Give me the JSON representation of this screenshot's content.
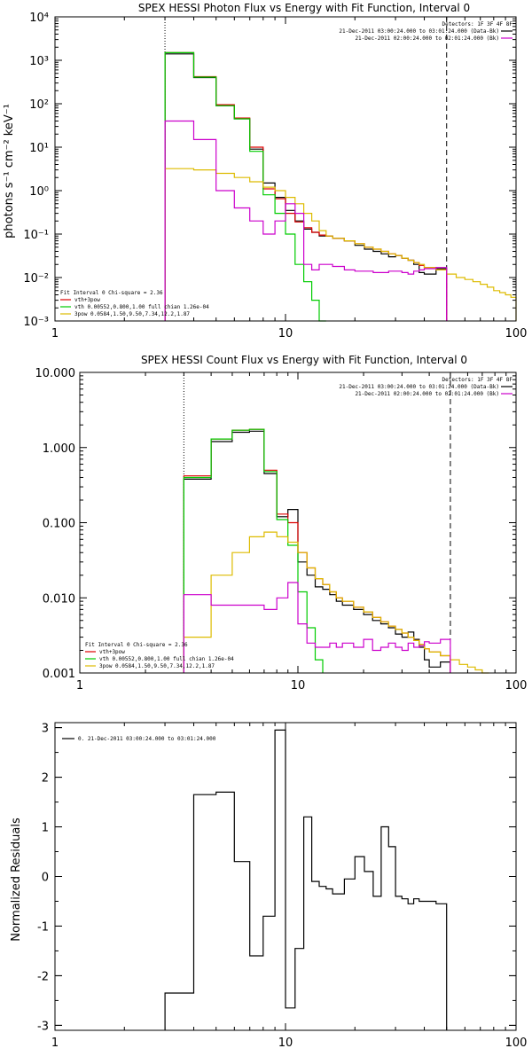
{
  "chart_data": [
    {
      "type": "line",
      "style": "histogram",
      "title": "SPEX HESSI Photon Flux vs Energy with Fit Function, Interval 0",
      "ylabel": "photons s⁻¹ cm⁻² keV⁻¹",
      "xlabel": "",
      "xscale": "log",
      "yscale": "log",
      "xlim": [
        1,
        100
      ],
      "ylim": [
        0.001,
        10000
      ],
      "x_ticks": [
        1,
        10,
        100
      ],
      "x_tick_labels": [
        "1",
        "10",
        "100"
      ],
      "y_ticks": [
        0.001,
        0.01,
        0.1,
        1,
        10,
        100,
        1000,
        10000
      ],
      "y_tick_labels": [
        "10⁻³",
        "10⁻²",
        "10⁻¹",
        "10⁰",
        "10¹",
        "10²",
        "10³",
        "10⁴"
      ],
      "vlines": [
        {
          "x": 3,
          "style": "dotted"
        },
        {
          "x": 50,
          "style": "dashed"
        }
      ],
      "info": {
        "detectors": "Detectors: 1F 3F 4F 8F",
        "lines": [
          {
            "text": "21-Dec-2011 03:00:24.000 to 03:01:24.000 (Data-Bk)",
            "color": "#000000"
          },
          {
            "text": "21-Dec-2011 02:00:24.000 to 02:01:24.000 (Bk)",
            "color": "#cc00cc"
          }
        ]
      },
      "legend": {
        "position": "bottom-left",
        "header": "Fit Interval 0   Chi-square = 2.36",
        "entries": [
          {
            "text": "vth+3pow",
            "color": "#dd0000"
          },
          {
            "text": "vth 0.00552,0.800,1.00   full chian 1.26e-04",
            "color": "#00cc00"
          },
          {
            "text": "3pow 0.0584,1.50,9.50,7.34,12.2,1.87",
            "color": "#ddbb00"
          }
        ]
      },
      "bin_edges": [
        3,
        3.5,
        4,
        4.5,
        5,
        5.5,
        6,
        6.5,
        7,
        7.5,
        8,
        9,
        10,
        11,
        12,
        13,
        14,
        15,
        16,
        18,
        20,
        22,
        24,
        26,
        28,
        30,
        32,
        34,
        36,
        38,
        40,
        45,
        50,
        55,
        60,
        65,
        70,
        75,
        80,
        85,
        90,
        95,
        100
      ],
      "series": [
        {
          "id": "data-bk",
          "color": "#000000",
          "values": [
            1400,
            1400,
            400,
            400,
            90,
            90,
            45,
            45,
            9,
            9,
            1.5,
            0.7,
            0.35,
            0.2,
            0.13,
            0.11,
            0.09,
            0.09,
            0.08,
            0.07,
            0.055,
            0.045,
            0.04,
            0.035,
            0.03,
            0.032,
            0.028,
            0.025,
            0.02,
            0.013,
            0.012,
            0.016
          ]
        },
        {
          "id": "vth-3pow",
          "color": "#dd0000",
          "values": [
            1500,
            1500,
            420,
            420,
            95,
            95,
            47,
            47,
            10,
            10,
            1.1,
            0.65,
            0.3,
            0.19,
            0.14,
            0.11,
            0.095,
            0.09,
            0.08,
            0.07,
            0.06,
            0.05,
            0.045,
            0.04,
            0.035,
            0.032,
            0.028,
            0.025,
            0.022,
            0.019,
            0.017,
            0.015
          ]
        },
        {
          "id": "vth",
          "color": "#00cc00",
          "values": [
            1500,
            1500,
            410,
            410,
            90,
            90,
            45,
            45,
            8,
            8,
            0.8,
            0.3,
            0.1,
            0.02,
            0.008,
            0.003,
            0.001
          ]
        },
        {
          "id": "3pow",
          "color": "#ddbb00",
          "values": [
            3.2,
            3.2,
            3.0,
            3.0,
            2.5,
            2.5,
            2.0,
            2.0,
            1.6,
            1.6,
            1.2,
            1.0,
            0.7,
            0.5,
            0.3,
            0.2,
            0.12,
            0.09,
            0.08,
            0.07,
            0.06,
            0.05,
            0.045,
            0.04,
            0.035,
            0.032,
            0.028,
            0.025,
            0.022,
            0.02,
            0.017,
            0.015,
            0.012,
            0.01,
            0.009,
            0.008,
            0.007,
            0.006,
            0.005,
            0.0045,
            0.004,
            0.0035
          ]
        },
        {
          "id": "bk",
          "color": "#cc00cc",
          "values": [
            40,
            40,
            15,
            15,
            1.0,
            1.0,
            0.4,
            0.4,
            0.2,
            0.2,
            0.1,
            0.2,
            0.5,
            0.3,
            0.02,
            0.015,
            0.02,
            0.02,
            0.018,
            0.015,
            0.014,
            0.014,
            0.013,
            0.013,
            0.014,
            0.014,
            0.013,
            0.012,
            0.014,
            0.015,
            0.016,
            0.017
          ]
        }
      ]
    },
    {
      "type": "line",
      "style": "histogram",
      "title": "SPEX HESSI Count Flux vs Energy with Fit Function, Interval 0",
      "ylabel": "",
      "xlabel": "",
      "xscale": "log",
      "yscale": "log",
      "xlim": [
        1,
        100
      ],
      "ylim": [
        0.001,
        10
      ],
      "x_ticks": [
        1,
        10,
        100
      ],
      "x_tick_labels": [
        "1",
        "10",
        "100"
      ],
      "y_ticks": [
        0.001,
        0.01,
        0.1,
        1,
        10
      ],
      "y_tick_labels": [
        "0.001",
        "0.010",
        "0.100",
        "1.000",
        "10.000"
      ],
      "vlines": [
        {
          "x": 3,
          "style": "dotted"
        },
        {
          "x": 50,
          "style": "dashed"
        }
      ],
      "info": {
        "detectors": "Detectors: 1F 3F 4F 8F",
        "lines": [
          {
            "text": "21-Dec-2011 03:00:24.000 to 03:01:24.000 (Data-Bk)",
            "color": "#000000"
          },
          {
            "text": "21-Dec-2011 02:00:24.000 to 02:01:24.000 (Bk)",
            "color": "#cc00cc"
          }
        ]
      },
      "legend": {
        "position": "bottom-left",
        "header": "Fit Interval 0   Chi-square = 2.36",
        "entries": [
          {
            "text": "vth+3pow",
            "color": "#dd0000"
          },
          {
            "text": "vth 0.00552,0.800,1.00   full chian 1.26e-04",
            "color": "#00cc00"
          },
          {
            "text": "3pow 0.0584,1.50,9.50,7.34,12.2,1.87",
            "color": "#ddbb00"
          }
        ]
      },
      "bin_edges": [
        3,
        4,
        5,
        6,
        7,
        8,
        9,
        10,
        11,
        12,
        13,
        14,
        15,
        16,
        18,
        20,
        22,
        24,
        26,
        28,
        30,
        32,
        34,
        36,
        38,
        40,
        45,
        50,
        55,
        60,
        65,
        70,
        75,
        80,
        85,
        90,
        95,
        100
      ],
      "series": [
        {
          "id": "data-bk",
          "color": "#000000",
          "values": [
            0.38,
            1.2,
            1.6,
            1.65,
            0.45,
            0.12,
            0.15,
            0.03,
            0.02,
            0.014,
            0.013,
            0.011,
            0.009,
            0.008,
            0.007,
            0.006,
            0.005,
            0.0045,
            0.004,
            0.0033,
            0.003,
            0.0035,
            0.0028,
            0.0022,
            0.0015,
            0.0012,
            0.0014
          ]
        },
        {
          "id": "vth-3pow",
          "color": "#dd0000",
          "values": [
            0.42,
            1.3,
            1.7,
            1.75,
            0.5,
            0.13,
            0.1,
            0.04,
            0.025,
            0.018,
            0.015,
            0.012,
            0.01,
            0.009,
            0.0075,
            0.0065,
            0.0055,
            0.0048,
            0.0042,
            0.0038,
            0.0034,
            0.003,
            0.0027,
            0.0024,
            0.0021,
            0.0019,
            0.0017
          ]
        },
        {
          "id": "vth",
          "color": "#00cc00",
          "values": [
            0.4,
            1.3,
            1.7,
            1.75,
            0.48,
            0.11,
            0.05,
            0.012,
            0.004,
            0.0015
          ]
        },
        {
          "id": "3pow",
          "color": "#ddbb00",
          "values": [
            0.003,
            0.02,
            0.04,
            0.065,
            0.075,
            0.065,
            0.055,
            0.04,
            0.025,
            0.018,
            0.015,
            0.012,
            0.01,
            0.009,
            0.0075,
            0.0065,
            0.0055,
            0.0048,
            0.0042,
            0.0038,
            0.0034,
            0.003,
            0.0027,
            0.0024,
            0.0021,
            0.0019,
            0.0017,
            0.0015,
            0.0013,
            0.0012,
            0.0011,
            0.001
          ]
        },
        {
          "id": "bk",
          "color": "#cc00cc",
          "values": [
            0.011,
            0.008,
            0.008,
            0.008,
            0.007,
            0.01,
            0.016,
            0.0045,
            0.0025,
            0.0022,
            0.0022,
            0.0025,
            0.0022,
            0.0025,
            0.0022,
            0.0028,
            0.002,
            0.0022,
            0.0025,
            0.0022,
            0.002,
            0.0025,
            0.0022,
            0.0023,
            0.0026,
            0.0025,
            0.0028
          ]
        }
      ]
    },
    {
      "type": "line",
      "style": "histogram",
      "title": "",
      "ylabel": "Normalized Residuals",
      "xlabel": "",
      "xscale": "log",
      "yscale": "linear",
      "xlim": [
        1,
        100
      ],
      "ylim": [
        -3.1,
        3.1
      ],
      "x_ticks": [
        1,
        10,
        100
      ],
      "x_tick_labels": [
        "1",
        "10",
        "100"
      ],
      "y_ticks": [
        -3,
        -2,
        -1,
        0,
        1,
        2,
        3
      ],
      "y_tick_labels": [
        "-3",
        "-2",
        "-1",
        "0",
        "1",
        "2",
        "3"
      ],
      "legend": {
        "position": "top-left",
        "entries": [
          {
            "text": "0. 21-Dec-2011 03:00:24.000 to 03:01:24.000",
            "color": "#000000"
          }
        ]
      },
      "bin_edges": [
        3,
        4,
        5,
        6,
        7,
        8,
        9,
        10,
        11,
        12,
        13,
        14,
        15,
        16,
        18,
        20,
        22,
        24,
        26,
        28,
        30,
        32,
        34,
        36,
        38,
        40,
        45,
        50
      ],
      "series": [
        {
          "id": "residuals",
          "color": "#000000",
          "values": [
            -2.35,
            1.65,
            1.7,
            0.3,
            -1.6,
            -0.8,
            2.95,
            -2.65,
            -1.45,
            1.2,
            -0.1,
            -0.2,
            -0.25,
            -0.35,
            -0.05,
            0.4,
            0.1,
            -0.4,
            1.0,
            0.6,
            -0.4,
            -0.45,
            -0.55,
            -0.45,
            -0.5,
            -0.5,
            -0.55
          ]
        }
      ],
      "start_value": -3.1
    }
  ]
}
